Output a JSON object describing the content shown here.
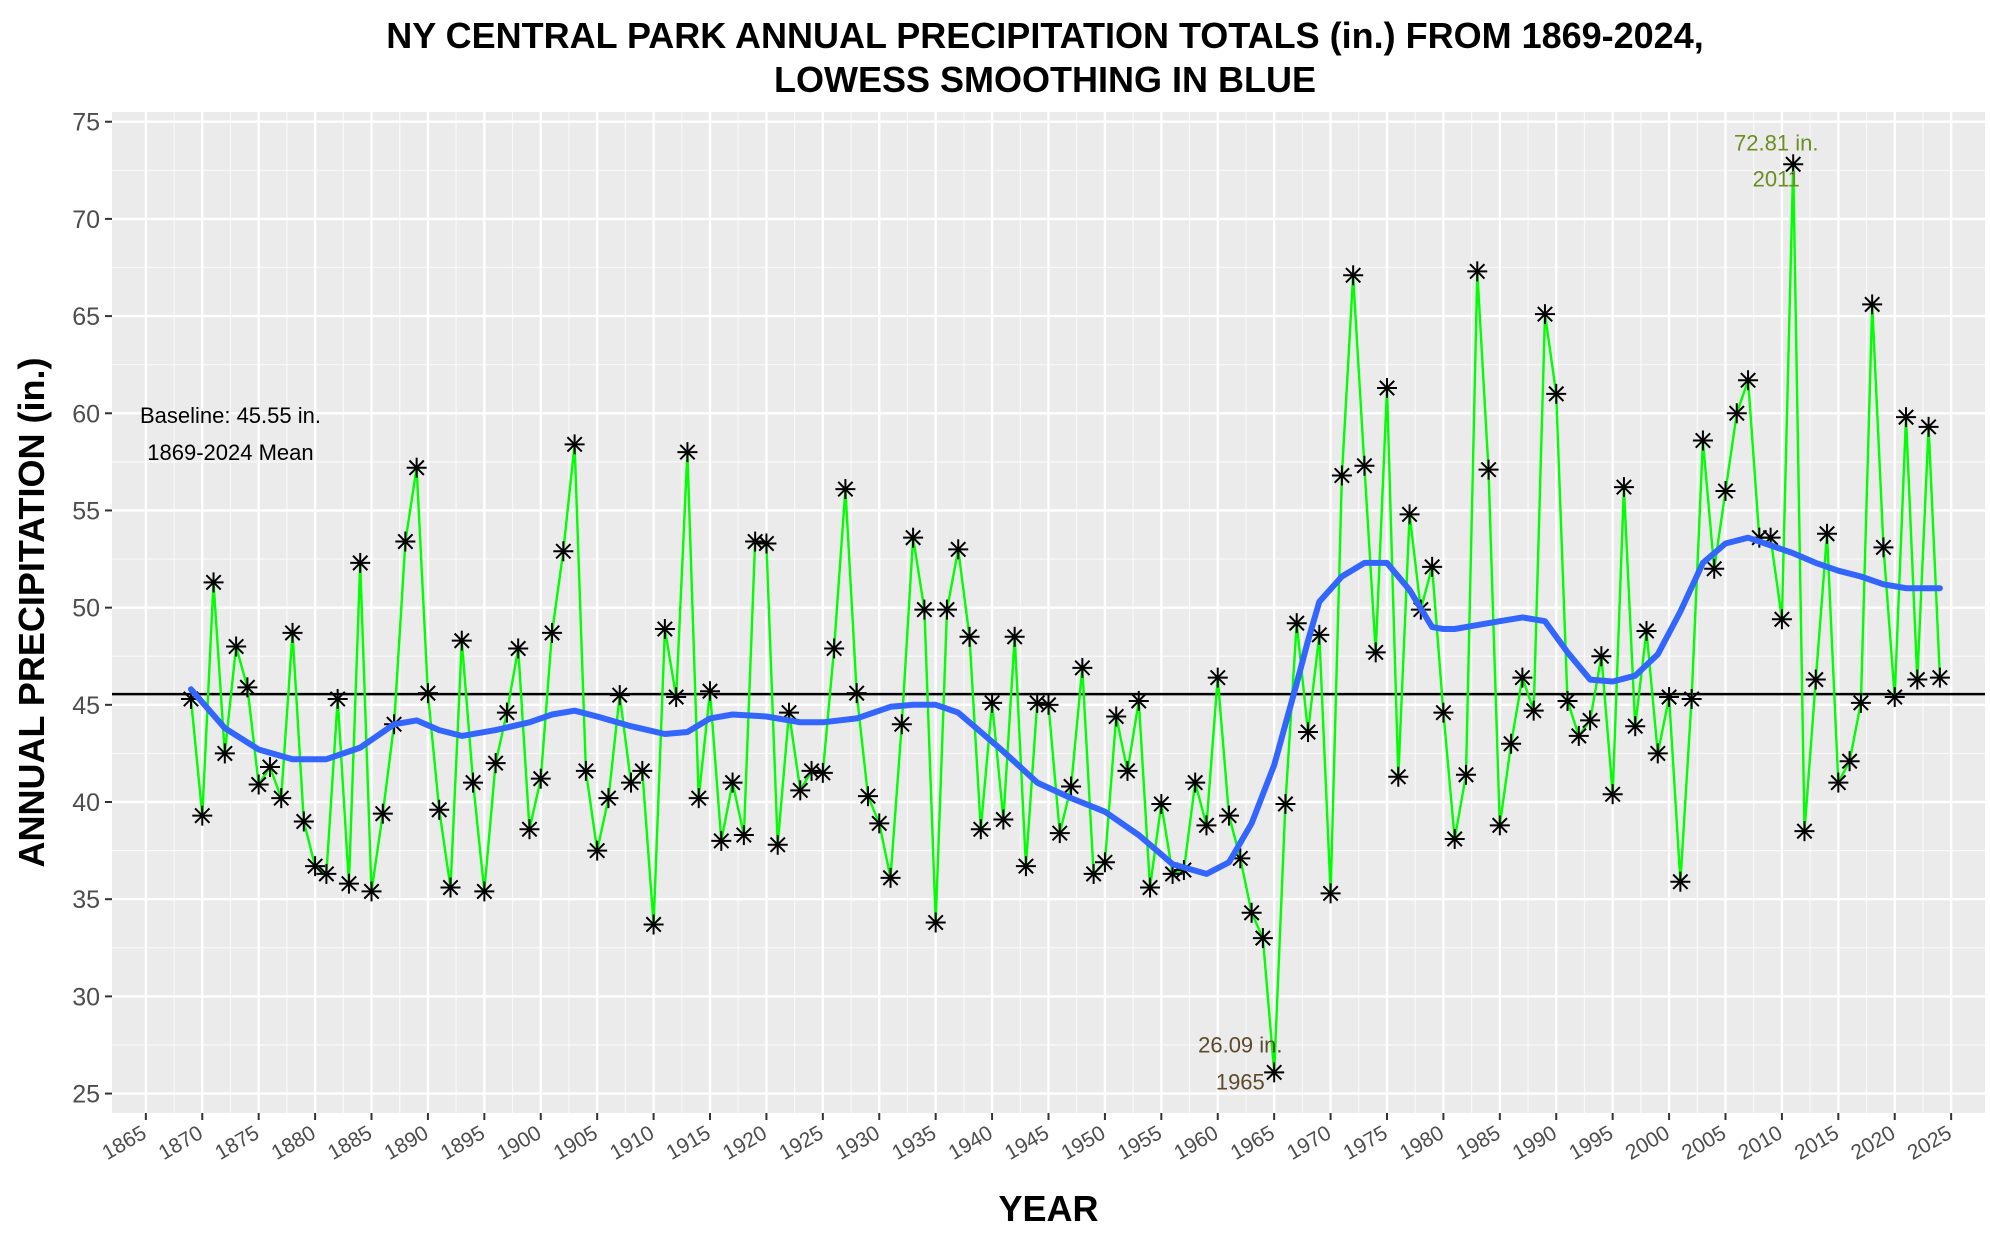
{
  "title": {
    "line1": "NY CENTRAL PARK ANNUAL PRECIPITATION TOTALS (in.) FROM 1869-2024,",
    "line2": "LOWESS SMOOTHING IN BLUE"
  },
  "colors": {
    "panel": "#ebebeb",
    "grid_major": "#ffffff",
    "line": "#00ff00",
    "smooth": "#3366ff",
    "point": "#000000",
    "baseline": "#000000",
    "annot_max": "#6b8e23",
    "annot_min": "#5c4a2a"
  },
  "chart_data": {
    "type": "line",
    "xlabel": "YEAR",
    "ylabel": "ANNUAL PRECIPITATION (in.)",
    "xlim": [
      1862,
      2028
    ],
    "ylim": [
      24,
      75.5
    ],
    "x_ticks": [
      1865,
      1870,
      1875,
      1880,
      1885,
      1890,
      1895,
      1900,
      1905,
      1910,
      1915,
      1920,
      1925,
      1930,
      1935,
      1940,
      1945,
      1950,
      1955,
      1960,
      1965,
      1970,
      1975,
      1980,
      1985,
      1990,
      1995,
      2000,
      2005,
      2010,
      2015,
      2020,
      2025
    ],
    "y_ticks": [
      25,
      30,
      35,
      40,
      45,
      50,
      55,
      60,
      65,
      70,
      75
    ],
    "grid": true,
    "baseline": {
      "value": 45.55,
      "label_line1": "Baseline: 45.55 in.",
      "label_line2": "1869-2024 Mean"
    },
    "annotations": [
      {
        "x": 2011,
        "y": 72.81,
        "line1": "72.81 in.",
        "line2": "2011"
      },
      {
        "x": 1965,
        "y": 26.09,
        "line1": "26.09 in.",
        "line2": "1965"
      }
    ],
    "series": [
      {
        "name": "Annual precipitation",
        "x": [
          1869,
          1870,
          1871,
          1872,
          1873,
          1874,
          1875,
          1876,
          1877,
          1878,
          1879,
          1880,
          1881,
          1882,
          1883,
          1884,
          1885,
          1886,
          1887,
          1888,
          1889,
          1890,
          1891,
          1892,
          1893,
          1894,
          1895,
          1896,
          1897,
          1898,
          1899,
          1900,
          1901,
          1902,
          1903,
          1904,
          1905,
          1906,
          1907,
          1908,
          1909,
          1910,
          1911,
          1912,
          1913,
          1914,
          1915,
          1916,
          1917,
          1918,
          1919,
          1920,
          1921,
          1922,
          1923,
          1924,
          1925,
          1926,
          1927,
          1928,
          1929,
          1930,
          1931,
          1932,
          1933,
          1934,
          1935,
          1936,
          1937,
          1938,
          1939,
          1940,
          1941,
          1942,
          1943,
          1944,
          1945,
          1946,
          1947,
          1948,
          1949,
          1950,
          1951,
          1952,
          1953,
          1954,
          1955,
          1956,
          1957,
          1958,
          1959,
          1960,
          1961,
          1962,
          1963,
          1964,
          1965,
          1966,
          1967,
          1968,
          1969,
          1970,
          1971,
          1972,
          1973,
          1974,
          1975,
          1976,
          1977,
          1978,
          1979,
          1980,
          1981,
          1982,
          1983,
          1984,
          1985,
          1986,
          1987,
          1988,
          1989,
          1990,
          1991,
          1992,
          1993,
          1994,
          1995,
          1996,
          1997,
          1998,
          1999,
          2000,
          2001,
          2002,
          2003,
          2004,
          2005,
          2006,
          2007,
          2008,
          2009,
          2010,
          2011,
          2012,
          2013,
          2014,
          2015,
          2016,
          2017,
          2018,
          2019,
          2020,
          2021,
          2022,
          2023,
          2024
        ],
        "values": [
          45.3,
          39.3,
          51.3,
          42.5,
          48.0,
          45.9,
          40.9,
          41.8,
          40.2,
          48.7,
          39.0,
          36.7,
          36.3,
          45.3,
          35.8,
          52.3,
          35.4,
          39.4,
          44.0,
          53.4,
          57.2,
          45.6,
          39.6,
          35.6,
          48.3,
          41.0,
          35.4,
          42.0,
          44.6,
          47.9,
          38.6,
          41.2,
          48.7,
          52.9,
          58.4,
          41.6,
          37.5,
          40.2,
          45.5,
          41.0,
          41.6,
          33.7,
          48.9,
          45.4,
          58.0,
          40.2,
          45.7,
          38.0,
          41.0,
          38.3,
          53.4,
          53.3,
          37.8,
          44.6,
          40.6,
          41.6,
          41.5,
          47.9,
          56.1,
          45.6,
          40.3,
          38.9,
          36.1,
          44.0,
          53.6,
          49.9,
          33.8,
          49.9,
          53.0,
          48.5,
          38.6,
          45.1,
          39.1,
          48.5,
          36.7,
          45.1,
          45.0,
          38.4,
          40.8,
          46.9,
          36.3,
          36.9,
          44.4,
          41.6,
          45.2,
          35.6,
          39.9,
          36.3,
          36.5,
          41.0,
          38.8,
          46.4,
          39.3,
          37.1,
          34.3,
          33.0,
          26.09,
          39.9,
          49.2,
          43.6,
          48.6,
          35.3,
          56.8,
          67.1,
          57.3,
          47.7,
          61.3,
          41.3,
          54.8,
          49.9,
          52.1,
          44.6,
          38.1,
          41.4,
          67.3,
          57.1,
          38.8,
          43.0,
          46.4,
          44.7,
          65.1,
          61.0,
          45.2,
          43.4,
          44.2,
          47.5,
          40.4,
          56.2,
          43.9,
          48.8,
          42.5,
          45.4,
          35.9,
          45.3,
          58.6,
          52.0,
          56.0,
          60.0,
          61.7,
          53.6,
          53.6,
          49.4,
          72.81,
          38.5,
          46.3,
          53.8,
          41.0,
          42.1,
          45.1,
          65.6,
          53.1,
          45.4,
          59.8,
          46.3,
          59.3,
          46.4
        ]
      },
      {
        "name": "LOWESS",
        "x": [
          1869,
          1872,
          1875,
          1878,
          1881,
          1884,
          1887,
          1889,
          1891,
          1893,
          1896,
          1899,
          1901,
          1903,
          1905,
          1908,
          1911,
          1913,
          1915,
          1917,
          1920,
          1923,
          1925,
          1928,
          1931,
          1933,
          1935,
          1937,
          1939,
          1941,
          1944,
          1947,
          1950,
          1953,
          1956,
          1959,
          1961,
          1963,
          1965,
          1966,
          1967,
          1968,
          1969,
          1971,
          1973,
          1975,
          1977,
          1979,
          1980,
          1981,
          1983,
          1985,
          1987,
          1989,
          1991,
          1993,
          1995,
          1997,
          1999,
          2001,
          2003,
          2005,
          2007,
          2009,
          2011,
          2013,
          2015,
          2017,
          2019,
          2021,
          2024
        ],
        "values": [
          45.8,
          43.8,
          42.7,
          42.2,
          42.2,
          42.8,
          44.0,
          44.2,
          43.7,
          43.4,
          43.7,
          44.1,
          44.5,
          44.7,
          44.4,
          43.9,
          43.5,
          43.6,
          44.3,
          44.5,
          44.4,
          44.1,
          44.1,
          44.3,
          44.9,
          45.0,
          45.0,
          44.6,
          43.6,
          42.6,
          41.0,
          40.2,
          39.5,
          38.3,
          36.8,
          36.3,
          36.9,
          38.9,
          41.9,
          44.0,
          46.1,
          48.3,
          50.3,
          51.6,
          52.3,
          52.3,
          50.9,
          49.0,
          48.9,
          48.9,
          49.1,
          49.3,
          49.5,
          49.3,
          47.7,
          46.3,
          46.2,
          46.5,
          47.6,
          49.8,
          52.3,
          53.3,
          53.6,
          53.2,
          52.8,
          52.3,
          51.9,
          51.6,
          51.2,
          51.0,
          51.0
        ]
      }
    ]
  }
}
